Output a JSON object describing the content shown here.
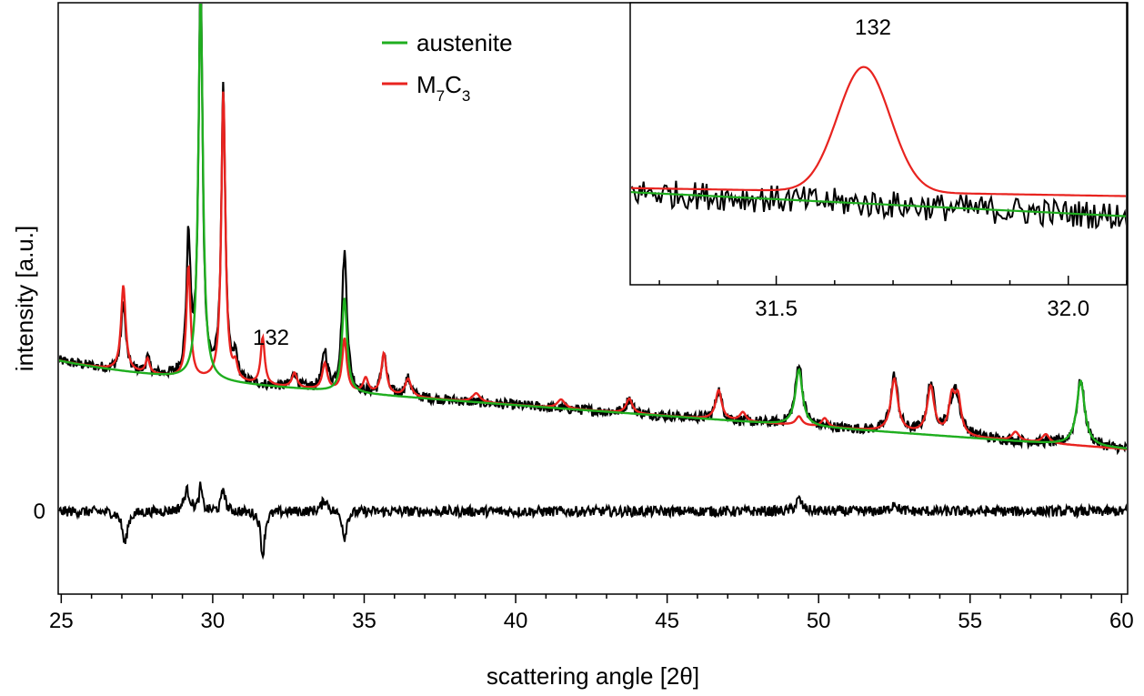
{
  "chart_data": {
    "type": "line",
    "xlabel": "scattering angle [2θ]",
    "ylabel": "intensity [a.u.]",
    "xlim": [
      24.9,
      60.2
    ],
    "ylim": [
      -0.28,
      1.72
    ],
    "x_ticks": [
      "25",
      "30",
      "35",
      "40",
      "45",
      "50",
      "55",
      "60"
    ],
    "y_ticks": [
      "0"
    ],
    "grid": false,
    "legend": {
      "position": "top-center",
      "entries": [
        {
          "label": "austenite",
          "color": "#1fae1f"
        },
        {
          "label": "M",
          "sub1": "7",
          "label2": "C",
          "sub2": "3",
          "color": "#e8231f"
        }
      ]
    },
    "annotations": [
      {
        "text": "132",
        "x": 31.7,
        "y": 0.58
      }
    ],
    "background": {
      "start": 0.47,
      "end": 0.21,
      "curvature": 0.04
    },
    "series": [
      {
        "name": "austenite",
        "color": "#1fae1f",
        "peaks": [
          [
            29.6,
            1.3,
            0.09
          ],
          [
            34.35,
            0.32,
            0.1
          ],
          [
            49.35,
            0.19,
            0.14
          ],
          [
            58.65,
            0.22,
            0.16
          ]
        ]
      },
      {
        "name": "M7C3",
        "color": "#e8231f",
        "peaks": [
          [
            27.05,
            0.29,
            0.09
          ],
          [
            27.85,
            0.05,
            0.08
          ],
          [
            29.2,
            0.38,
            0.08
          ],
          [
            30.35,
            0.98,
            0.08
          ],
          [
            30.75,
            0.05,
            0.08
          ],
          [
            31.65,
            0.16,
            0.08
          ],
          [
            32.7,
            0.05,
            0.1
          ],
          [
            33.7,
            0.09,
            0.1
          ],
          [
            34.35,
            0.18,
            0.09
          ],
          [
            35.05,
            0.05,
            0.1
          ],
          [
            35.65,
            0.14,
            0.1
          ],
          [
            36.45,
            0.06,
            0.12
          ],
          [
            38.7,
            0.03,
            0.15
          ],
          [
            41.5,
            0.03,
            0.15
          ],
          [
            43.75,
            0.05,
            0.12
          ],
          [
            46.7,
            0.1,
            0.12
          ],
          [
            47.5,
            0.03,
            0.12
          ],
          [
            49.35,
            0.03,
            0.12
          ],
          [
            50.2,
            0.03,
            0.12
          ],
          [
            52.5,
            0.18,
            0.14
          ],
          [
            53.7,
            0.16,
            0.14
          ],
          [
            54.4,
            0.12,
            0.12
          ],
          [
            54.6,
            0.12,
            0.12
          ],
          [
            56.5,
            0.03,
            0.14
          ],
          [
            57.5,
            0.03,
            0.14
          ]
        ]
      },
      {
        "name": "",
        "color": "#000000",
        "peaks": [
          [
            27.05,
            0.23,
            0.09
          ],
          [
            27.85,
            0.05,
            0.08
          ],
          [
            29.2,
            0.46,
            0.08
          ],
          [
            29.6,
            1.35,
            0.08
          ],
          [
            30.35,
            0.98,
            0.08
          ],
          [
            30.75,
            0.08,
            0.08
          ],
          [
            32.7,
            0.05,
            0.1
          ],
          [
            33.7,
            0.13,
            0.1
          ],
          [
            34.35,
            0.47,
            0.1
          ],
          [
            35.65,
            0.14,
            0.1
          ],
          [
            36.45,
            0.06,
            0.12
          ],
          [
            43.75,
            0.05,
            0.12
          ],
          [
            46.7,
            0.1,
            0.12
          ],
          [
            49.35,
            0.21,
            0.14
          ],
          [
            52.5,
            0.19,
            0.14
          ],
          [
            53.7,
            0.17,
            0.14
          ],
          [
            54.5,
            0.16,
            0.2
          ],
          [
            58.65,
            0.22,
            0.16
          ]
        ]
      },
      {
        "name": "",
        "color": "#000000",
        "role": "difference",
        "offset": 0,
        "peaks": [
          [
            27.1,
            -0.11,
            0.1
          ],
          [
            29.15,
            0.07,
            0.12
          ],
          [
            29.6,
            0.08,
            0.06
          ],
          [
            30.35,
            0.08,
            0.07
          ],
          [
            31.65,
            -0.15,
            0.08
          ],
          [
            33.7,
            0.04,
            0.12
          ],
          [
            34.35,
            -0.09,
            0.08
          ],
          [
            49.35,
            0.04,
            0.12
          ],
          [
            52.5,
            0.03,
            0.1
          ]
        ]
      }
    ],
    "inset": {
      "xlim": [
        31.25,
        32.1
      ],
      "x_ticks": [
        "31.5",
        "32.0"
      ],
      "annotation": "132",
      "series": [
        {
          "name": "M7C3",
          "color": "#e8231f",
          "baseline": [
            0.0,
            -0.01
          ],
          "peak": [
            31.65,
            0.155,
            0.075
          ]
        },
        {
          "name": "austenite",
          "color": "#1fae1f",
          "baseline": [
            -0.005,
            -0.035
          ]
        },
        {
          "name": "",
          "color": "#000000",
          "baseline": [
            -0.005,
            -0.035
          ]
        }
      ]
    }
  }
}
